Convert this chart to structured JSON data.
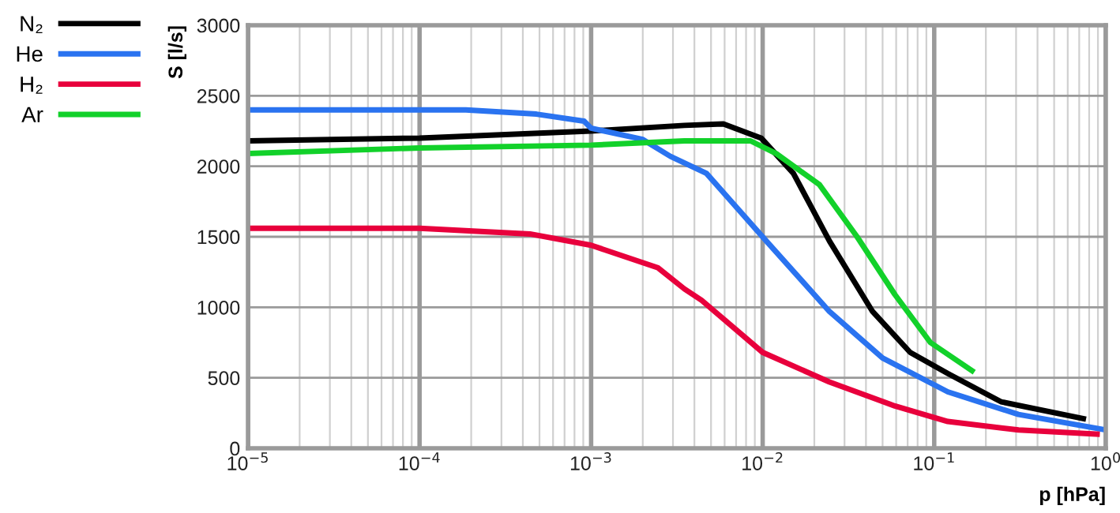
{
  "chart_data": {
    "type": "line",
    "xlabel": "p [hPa]",
    "ylabel": "S [l/s]",
    "log": "x",
    "xlim": [
      1e-05,
      1
    ],
    "ylim": [
      0,
      3000
    ],
    "xticks": [
      {
        "value": 1e-05,
        "label": "10$^{−5}$"
      },
      {
        "value": 0.0001,
        "label": "10$^{−4}$"
      },
      {
        "value": 0.001,
        "label": "10$^{−3}$"
      },
      {
        "value": 0.01,
        "label": "10$^{−2}$"
      },
      {
        "value": 0.1,
        "label": "10$^{−1}$"
      },
      {
        "value": 1,
        "label": "10$^{0}$"
      }
    ],
    "yticks": [
      0,
      500,
      1000,
      1500,
      2000,
      2500,
      3000
    ],
    "grid": true,
    "legend": "top left",
    "marker": "none",
    "line_style": "solid",
    "series": [
      {
        "name": "N₂",
        "color": "#000000",
        "x": [
          1e-05,
          0.0001,
          0.001,
          0.0035,
          0.0059,
          0.0098,
          0.0151,
          0.0245,
          0.0437,
          0.0724,
          0.12,
          0.245,
          0.74
        ],
        "values": [
          2180,
          2200,
          2250,
          2290,
          2300,
          2200,
          1950,
          1470,
          970,
          680,
          530,
          330,
          210
        ]
      },
      {
        "name": "He",
        "color": "#2a73f0",
        "x": [
          1e-05,
          0.0001,
          0.000186,
          0.00048,
          0.00091,
          0.001,
          0.002,
          0.0029,
          0.0047,
          0.0105,
          0.0245,
          0.05,
          0.12,
          0.31,
          1
        ],
        "values": [
          2400,
          2400,
          2400,
          2370,
          2320,
          2270,
          2190,
          2070,
          1950,
          1470,
          970,
          640,
          400,
          240,
          130
        ]
      },
      {
        "name": "H₂",
        "color": "#e8003c",
        "x": [
          1e-05,
          0.0001,
          0.00044,
          0.001,
          0.00245,
          0.0035,
          0.0044,
          0.01,
          0.0245,
          0.059,
          0.12,
          0.31,
          0.89
        ],
        "values": [
          1560,
          1560,
          1520,
          1440,
          1280,
          1130,
          1050,
          680,
          470,
          300,
          190,
          130,
          100
        ]
      },
      {
        "name": "Ar",
        "color": "#12d12a",
        "x": [
          1e-05,
          0.0001,
          0.001,
          0.0035,
          0.0085,
          0.012,
          0.0214,
          0.0355,
          0.059,
          0.095,
          0.166
        ],
        "values": [
          2090,
          2130,
          2150,
          2180,
          2180,
          2090,
          1870,
          1500,
          1090,
          750,
          550
        ]
      }
    ]
  }
}
